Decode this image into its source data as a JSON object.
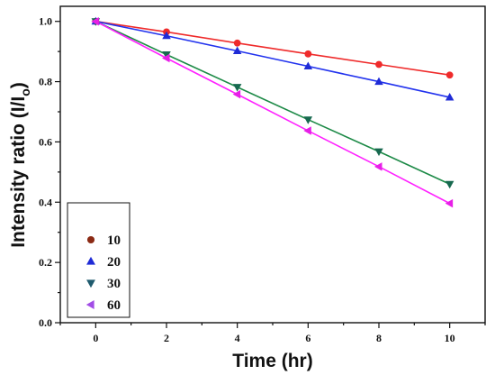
{
  "chart_data": {
    "type": "line",
    "xlabel": "Time (hr)",
    "ylabel_main": "Intensity ratio (I/I",
    "ylabel_sub": "o",
    "ylabel_close": ")",
    "xlim": [
      -1,
      11
    ],
    "ylim": [
      0.0,
      1.05
    ],
    "x_ticks": [
      0,
      2,
      4,
      6,
      8,
      10
    ],
    "x_tick_labels": [
      "0",
      "2",
      "4",
      "6",
      "8",
      "10"
    ],
    "y_ticks": [
      0.0,
      0.2,
      0.4,
      0.6,
      0.8,
      1.0
    ],
    "y_tick_labels": [
      "0.0",
      "0.2",
      "0.4",
      "0.6",
      "0.8",
      "1.0"
    ],
    "grid": false,
    "legend_position": "bottom-left",
    "x": [
      0,
      2,
      4,
      6,
      8,
      10
    ],
    "series": [
      {
        "name": "10",
        "values": [
          1.0,
          0.965,
          0.928,
          0.892,
          0.857,
          0.822
        ],
        "line_color": "#ef2b2b",
        "marker_color": "#ef2b2b",
        "legend_marker_color": "#8b2a14",
        "marker": "circle"
      },
      {
        "name": "20",
        "values": [
          1.0,
          0.952,
          0.902,
          0.851,
          0.8,
          0.748
        ],
        "line_color": "#2233ee",
        "marker_color": "#1f2bd6",
        "legend_marker_color": "#1f2bd6",
        "marker": "triangle-up"
      },
      {
        "name": "30",
        "values": [
          1.0,
          0.89,
          0.782,
          0.674,
          0.568,
          0.46
        ],
        "line_color": "#1d8a47",
        "marker_color": "#17694f",
        "legend_marker_color": "#1f5b6e",
        "marker": "triangle-down"
      },
      {
        "name": "60",
        "values": [
          1.0,
          0.878,
          0.758,
          0.637,
          0.518,
          0.396
        ],
        "line_color": "#ff22ff",
        "marker_color": "#e71fe7",
        "legend_marker_color": "#a24de6",
        "marker": "triangle-left"
      }
    ]
  }
}
